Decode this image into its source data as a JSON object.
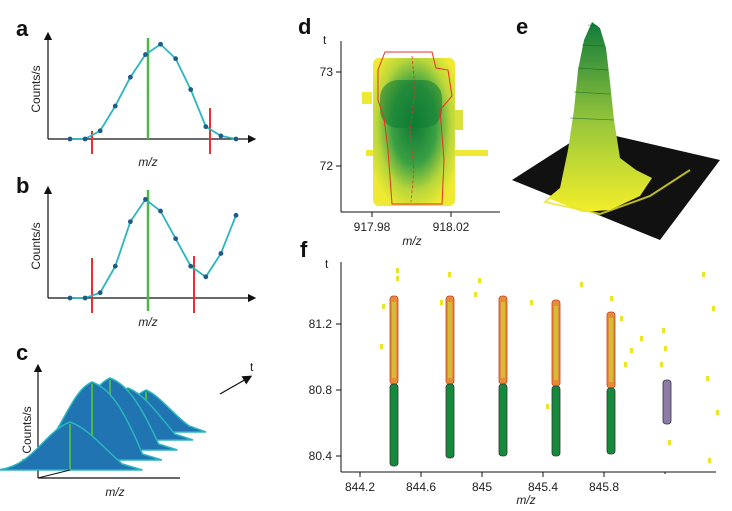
{
  "figure": {
    "panels": {
      "a": {
        "label": "a",
        "ylabel": "Counts/s",
        "xlabel": "m/z"
      },
      "b": {
        "label": "b",
        "ylabel": "Counts/s",
        "xlabel": "m/z"
      },
      "c": {
        "label": "c",
        "ylabel": "Counts/s",
        "xlabel": "m/z",
        "depth_label": "t"
      },
      "d": {
        "label": "d",
        "ylabel": "t",
        "xlabel": "m/z",
        "xticks": [
          "917.98",
          "918.02"
        ],
        "yticks": [
          "73",
          "72"
        ]
      },
      "e": {
        "label": "e"
      },
      "f": {
        "label": "f",
        "ylabel": "t",
        "xlabel": "m/z",
        "xticks": [
          "844.2",
          "844.6",
          "845",
          "845.4",
          "845.8"
        ],
        "yticks": [
          "81.2",
          "80.8",
          "80.4"
        ]
      }
    },
    "colors": {
      "profile": "#2bb5bf",
      "points": "#1e5a8a",
      "apex": "#4cb848",
      "boundary": "#e8312a",
      "fill_blue": "#1f74b1",
      "green": "#168a3c",
      "yellow": "#e9e62a"
    }
  },
  "chart_data": [
    {
      "panel": "a",
      "type": "line",
      "x": [
        1,
        2,
        3,
        4,
        5,
        6,
        7,
        8,
        9,
        10,
        11,
        12
      ],
      "values": [
        0.0,
        0.0,
        0.08,
        0.32,
        0.6,
        0.82,
        0.92,
        0.78,
        0.48,
        0.12,
        0.03,
        0.0
      ]
    },
    {
      "panel": "b",
      "type": "line",
      "x": [
        1,
        2,
        3,
        4,
        5,
        6,
        7,
        8,
        9,
        10,
        11,
        12
      ],
      "values": [
        0.0,
        0.0,
        0.05,
        0.3,
        0.72,
        0.93,
        0.82,
        0.56,
        0.3,
        0.2,
        0.42,
        0.78
      ]
    }
  ]
}
